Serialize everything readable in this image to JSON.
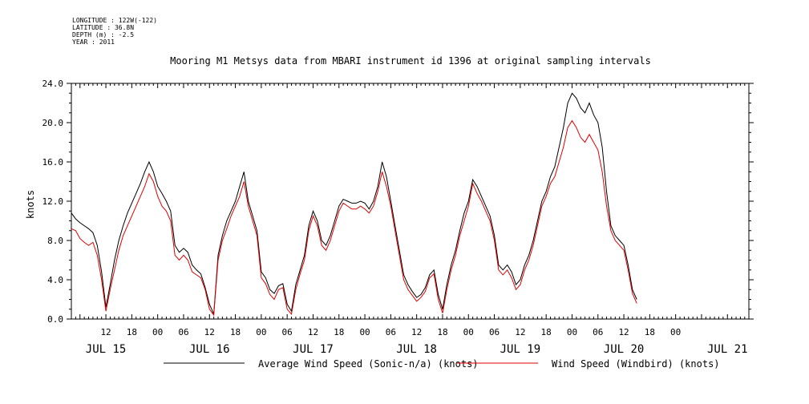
{
  "header": {
    "lines": [
      "LONGITUDE : 122W(-122)",
      "LATITUDE : 36.8N",
      "DEPTH (m) : -2.5",
      "YEAR : 2011"
    ]
  },
  "chart_data": {
    "type": "line",
    "title": "Mooring M1 Metsys data from MBARI instrument id 1396 at original sampling intervals",
    "xlabel": "",
    "ylabel": "knots",
    "ylim": [
      0,
      24
    ],
    "yticks": [
      "0.0",
      "4.0",
      "8.0",
      "12.0",
      "16.0",
      "20.0",
      "24.0"
    ],
    "xlim_hours": [
      4,
      135
    ],
    "hour_ticks": [
      {
        "h": 12,
        "label": "12"
      },
      {
        "h": 18,
        "label": "18"
      },
      {
        "h": 24,
        "label": "00"
      },
      {
        "h": 30,
        "label": "06"
      },
      {
        "h": 36,
        "label": "12"
      },
      {
        "h": 42,
        "label": "18"
      },
      {
        "h": 48,
        "label": "00"
      },
      {
        "h": 54,
        "label": "06"
      },
      {
        "h": 60,
        "label": "12"
      },
      {
        "h": 66,
        "label": "18"
      },
      {
        "h": 72,
        "label": "00"
      },
      {
        "h": 78,
        "label": "06"
      },
      {
        "h": 84,
        "label": "12"
      },
      {
        "h": 90,
        "label": "18"
      },
      {
        "h": 96,
        "label": "00"
      },
      {
        "h": 102,
        "label": "06"
      },
      {
        "h": 108,
        "label": "12"
      },
      {
        "h": 114,
        "label": "18"
      },
      {
        "h": 120,
        "label": "00"
      },
      {
        "h": 126,
        "label": "06"
      },
      {
        "h": 132,
        "label": "12"
      },
      {
        "h": 138,
        "label": "18"
      },
      {
        "h": 144,
        "label": "00"
      }
    ],
    "day_labels": [
      {
        "h": 12,
        "label": "JUL 15"
      },
      {
        "h": 36,
        "label": "JUL 16"
      },
      {
        "h": 60,
        "label": "JUL 17"
      },
      {
        "h": 84,
        "label": "JUL 18"
      },
      {
        "h": 108,
        "label": "JUL 19"
      },
      {
        "h": 132,
        "label": "JUL 20"
      },
      {
        "h": 156,
        "label": "JUL 21"
      }
    ],
    "series": [
      {
        "name": "Average Wind Speed (Sonic-n/a) (knots)",
        "color": "#000000",
        "x": [
          4,
          5,
          6,
          7,
          8,
          9,
          10,
          11,
          12,
          13,
          14,
          15,
          16,
          17,
          18,
          19,
          20,
          21,
          22,
          23,
          24,
          25,
          26,
          27,
          28,
          29,
          30,
          31,
          32,
          33,
          34,
          35,
          36,
          37,
          38,
          39,
          40,
          41,
          42,
          43,
          44,
          45,
          46,
          47,
          48,
          49,
          50,
          51,
          52,
          53,
          54,
          55,
          56,
          57,
          58,
          59,
          60,
          61,
          62,
          63,
          64,
          65,
          66,
          67,
          68,
          69,
          70,
          71,
          72,
          73,
          74,
          75,
          76,
          77,
          78,
          79,
          80,
          81,
          82,
          83,
          84,
          85,
          86,
          87,
          88,
          89,
          90,
          91,
          92,
          93,
          94,
          95,
          96,
          97,
          98,
          99,
          100,
          101,
          102,
          103,
          104,
          105,
          106,
          107,
          108,
          109,
          110,
          111,
          112,
          113,
          114,
          115,
          116,
          117,
          118,
          119,
          120,
          121,
          122,
          123,
          124,
          125,
          126,
          127,
          128,
          129,
          130,
          131,
          132,
          133,
          134,
          135
        ],
        "values": [
          10.8,
          10.2,
          9.8,
          9.5,
          9.2,
          8.8,
          7.5,
          4.8,
          1.2,
          3.5,
          6.0,
          8.0,
          9.5,
          10.8,
          11.8,
          12.8,
          13.8,
          15.0,
          16.0,
          15.0,
          13.5,
          12.8,
          12.0,
          11.0,
          7.5,
          6.8,
          7.2,
          6.8,
          5.5,
          5.0,
          4.6,
          3.2,
          1.5,
          0.5,
          6.5,
          8.5,
          10.0,
          11.0,
          12.0,
          13.5,
          15.0,
          12.0,
          10.5,
          9.0,
          4.8,
          4.2,
          3.0,
          2.6,
          3.4,
          3.6,
          1.5,
          0.8,
          3.5,
          5.0,
          6.5,
          9.5,
          11.0,
          10.0,
          8.0,
          7.5,
          8.5,
          10.0,
          11.5,
          12.2,
          12.0,
          11.8,
          11.8,
          12.0,
          11.8,
          11.2,
          12.0,
          13.5,
          16.0,
          14.5,
          12.0,
          9.5,
          7.0,
          4.5,
          3.5,
          2.8,
          2.2,
          2.5,
          3.2,
          4.5,
          5.0,
          2.5,
          1.0,
          3.5,
          5.5,
          7.0,
          9.0,
          10.8,
          12.0,
          14.2,
          13.5,
          12.5,
          11.5,
          10.5,
          8.5,
          5.5,
          5.0,
          5.5,
          4.8,
          3.5,
          4.0,
          5.5,
          6.5,
          8.0,
          10.0,
          12.0,
          13.0,
          14.5,
          15.5,
          17.5,
          19.5,
          22.0,
          23.0,
          22.5,
          21.5,
          21.0,
          22.0,
          20.8,
          20.0,
          17.5,
          13.0,
          9.5,
          8.5,
          8.0,
          7.5,
          5.5,
          3.0,
          2.0
        ]
      },
      {
        "name": "Wind Speed (Windbird) (knots)",
        "color": "#e00000",
        "x": [
          4,
          5,
          6,
          7,
          8,
          9,
          10,
          11,
          12,
          13,
          14,
          15,
          16,
          17,
          18,
          19,
          20,
          21,
          22,
          23,
          24,
          25,
          26,
          27,
          28,
          29,
          30,
          31,
          32,
          33,
          34,
          35,
          36,
          37,
          38,
          39,
          40,
          41,
          42,
          43,
          44,
          45,
          46,
          47,
          48,
          49,
          50,
          51,
          52,
          53,
          54,
          55,
          56,
          57,
          58,
          59,
          60,
          61,
          62,
          63,
          64,
          65,
          66,
          67,
          68,
          69,
          70,
          71,
          72,
          73,
          74,
          75,
          76,
          77,
          78,
          79,
          80,
          81,
          82,
          83,
          84,
          85,
          86,
          87,
          88,
          89,
          90,
          91,
          92,
          93,
          94,
          95,
          96,
          97,
          98,
          99,
          100,
          101,
          102,
          103,
          104,
          105,
          106,
          107,
          108,
          109,
          110,
          111,
          112,
          113,
          114,
          115,
          116,
          117,
          118,
          119,
          120,
          121,
          122,
          123,
          124,
          125,
          126,
          127,
          128,
          129,
          130,
          131,
          132,
          133,
          134,
          135
        ],
        "values": [
          9.2,
          9.0,
          8.2,
          7.8,
          7.5,
          7.8,
          6.5,
          4.0,
          0.8,
          3.0,
          5.0,
          7.0,
          8.5,
          9.5,
          10.5,
          11.5,
          12.5,
          13.5,
          14.8,
          14.0,
          12.5,
          11.5,
          11.0,
          10.0,
          6.5,
          6.0,
          6.5,
          6.0,
          4.8,
          4.5,
          4.2,
          3.0,
          1.0,
          0.4,
          6.0,
          8.0,
          9.2,
          10.5,
          11.5,
          12.5,
          14.0,
          11.5,
          10.0,
          8.5,
          4.2,
          3.6,
          2.5,
          2.0,
          3.0,
          3.2,
          1.0,
          0.5,
          3.0,
          4.6,
          6.0,
          9.0,
          10.5,
          9.5,
          7.5,
          7.0,
          8.0,
          9.5,
          11.0,
          11.8,
          11.5,
          11.2,
          11.2,
          11.5,
          11.2,
          10.8,
          11.5,
          13.0,
          15.0,
          13.5,
          11.5,
          9.0,
          6.5,
          4.0,
          3.0,
          2.4,
          1.8,
          2.2,
          2.8,
          4.2,
          4.6,
          2.0,
          0.6,
          3.0,
          5.0,
          6.5,
          8.5,
          10.0,
          11.5,
          13.8,
          12.8,
          12.0,
          11.0,
          10.0,
          8.0,
          5.0,
          4.5,
          5.0,
          4.2,
          3.0,
          3.5,
          5.0,
          6.0,
          7.5,
          9.5,
          11.5,
          12.5,
          13.8,
          14.5,
          16.0,
          17.5,
          19.5,
          20.2,
          19.5,
          18.5,
          18.0,
          18.8,
          18.0,
          17.2,
          15.0,
          11.5,
          9.0,
          8.0,
          7.5,
          7.0,
          5.0,
          2.6,
          1.6
        ]
      }
    ],
    "grid": false,
    "legend": "bottom"
  }
}
